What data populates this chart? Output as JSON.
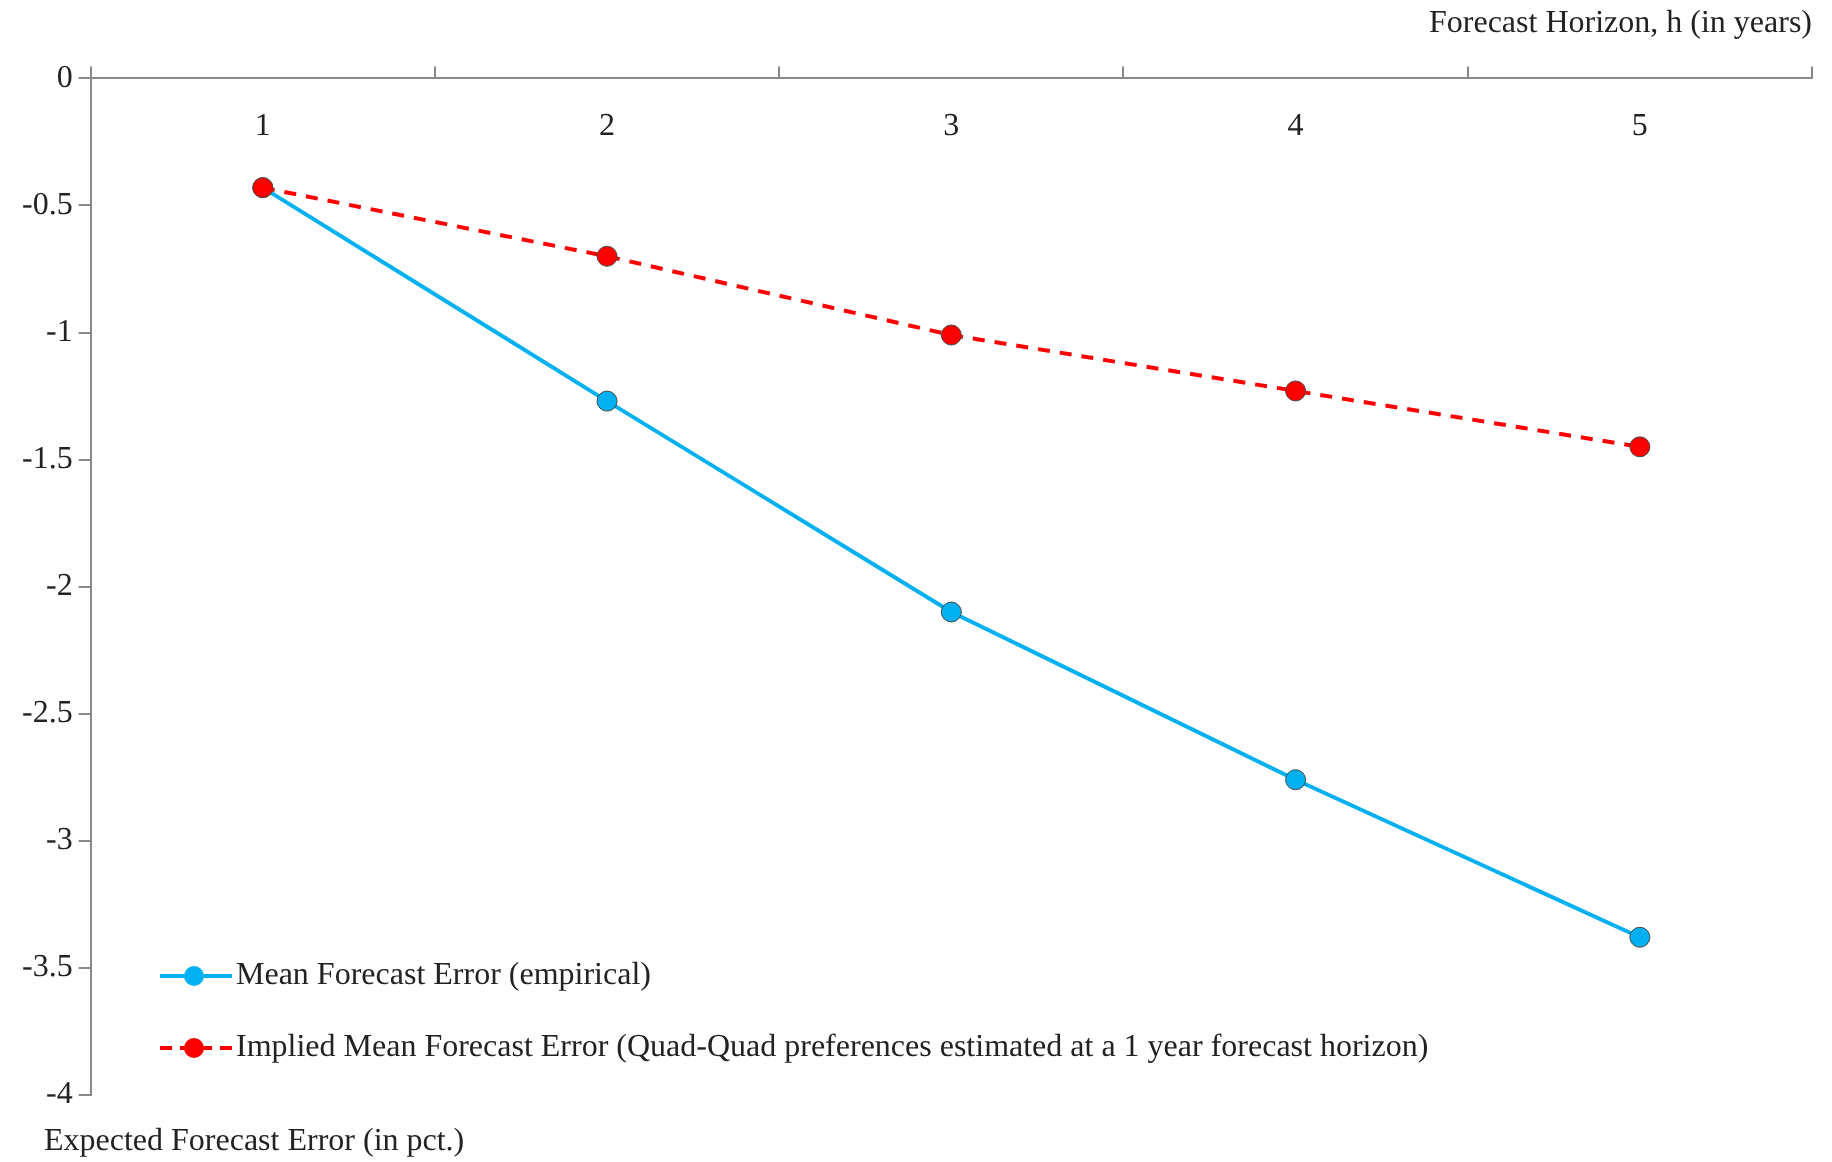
{
  "chart_data": {
    "type": "line",
    "xlabel": "Forecast Horizon, h (in years)",
    "ylabel": "Expected Forecast Error (in pct.)",
    "categories": [
      "1",
      "2",
      "3",
      "4",
      "5"
    ],
    "series": [
      {
        "name": "Mean Forecast Error (empirical)",
        "color": "#00b0f0",
        "values": [
          -0.43,
          -1.27,
          -2.1,
          -2.76,
          -3.38
        ],
        "line_style": "solid"
      },
      {
        "name": "Implied Mean Forecast Error (Quad-Quad preferences estimated at a 1 year forecast horizon)",
        "color": "#ff0000",
        "values": [
          -0.43,
          -0.7,
          -1.01,
          -1.23,
          -1.45
        ],
        "line_style": "dashed"
      }
    ],
    "ylim": [
      -4,
      0
    ],
    "yticks": [
      -4,
      -3.5,
      -3,
      -2.5,
      -2,
      -1.5,
      -1,
      -0.5,
      0
    ],
    "marker": "circle",
    "grid": false,
    "legend": "bottom left"
  }
}
